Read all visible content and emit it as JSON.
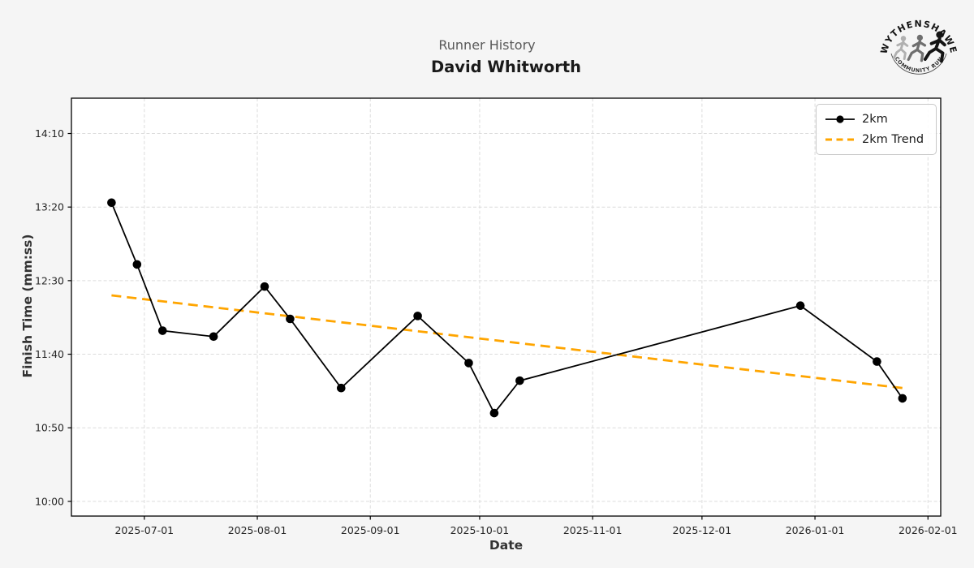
{
  "header": {
    "suptitle": "Runner History",
    "title": "David Whitworth"
  },
  "logo": {
    "top_text": "WYTHENSHAWE",
    "bottom_text": "COMMUNITY RUN"
  },
  "colors": {
    "figure_bg": "#f5f5f5",
    "plot_bg": "#ffffff",
    "line": "#000000",
    "trend": "#FFA500",
    "grid": "#dcdcdc",
    "spine": "#000000",
    "tick_text": "#262626"
  },
  "chart_data": {
    "type": "line",
    "title": "David Whitworth",
    "subtitle": "Runner History",
    "xlabel": "Date",
    "ylabel": "Finish Time (mm:ss)",
    "grid": true,
    "legend_position": "upper right",
    "x_ticks": [
      "2025-07-01",
      "2025-08-01",
      "2025-09-01",
      "2025-10-01",
      "2025-11-01",
      "2025-12-01",
      "2026-01-01",
      "2026-02-01"
    ],
    "y_ticks": [
      "14:10",
      "13:20",
      "12:30",
      "11:40",
      "10:50",
      "10:00"
    ],
    "xlim": [
      "2025-06-11",
      "2026-02-04"
    ],
    "ylim_seconds": [
      590,
      874
    ],
    "series": [
      {
        "name": "2km",
        "style": "solid-marker",
        "color": "#000000",
        "dates": [
          "2025-06-22",
          "2025-06-29",
          "2025-07-06",
          "2025-07-20",
          "2025-08-03",
          "2025-08-10",
          "2025-08-24",
          "2025-09-14",
          "2025-09-28",
          "2025-10-05",
          "2025-10-12",
          "2025-12-28",
          "2026-01-18",
          "2026-01-25"
        ],
        "times": [
          "13:23",
          "12:41",
          "11:56",
          "11:52",
          "12:26",
          "12:04",
          "11:17",
          "12:06",
          "11:34",
          "11:00",
          "11:22",
          "12:13",
          "11:35",
          "11:10"
        ]
      },
      {
        "name": "2km Trend",
        "style": "dashed",
        "color": "#FFA500",
        "dates": [
          "2025-06-22",
          "2026-01-25"
        ],
        "times": [
          "12:20",
          "11:17"
        ]
      }
    ]
  }
}
